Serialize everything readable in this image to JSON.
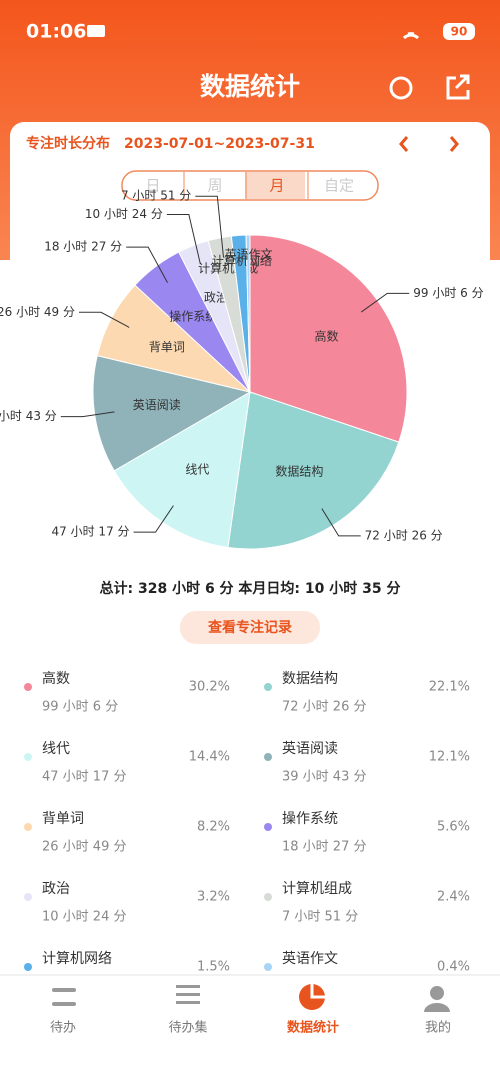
{
  "status_bar": {
    "time": "01:06",
    "battery": "90"
  },
  "header": {
    "title": "数据统计"
  },
  "card": {
    "heading": "专注时长分布",
    "range": "2023-07-01~2023-07-31",
    "tabs": [
      "日",
      "周",
      "月",
      "自定"
    ],
    "summary": "总计: 328 小时 6 分  本月日均: 10 小时 35 分",
    "button": "查看专注记录"
  },
  "chart_data": {
    "type": "pie",
    "categories": [
      "高数",
      "数据结构",
      "线代",
      "英语阅读",
      "背单词",
      "操作系统",
      "政治",
      "计算机组成",
      "计算机网络",
      "英语作文"
    ],
    "values": [
      30.2,
      22.1,
      14.4,
      12.1,
      8.2,
      5.6,
      3.2,
      2.4,
      1.5,
      0.4
    ],
    "value_labels": [
      "30.2%",
      "22.1%",
      "14.4%",
      "12.1%",
      "8.2%",
      "5.6%",
      "3.2%",
      "2.4%",
      "1.5%",
      "0.4%"
    ],
    "durations": [
      "99 小时 6 分",
      "72 小时 26 分",
      "47 小时 17 分",
      "39 小时 43 分",
      "26 小时 49 分",
      "18 小时 27 分",
      "10 小时 24 分",
      "7 小时 51 分",
      null,
      null
    ],
    "colors": [
      "#f4879a",
      "#93d3d0",
      "#cdf5f3",
      "#8fb3b9",
      "#fcd9b0",
      "#9b87f0",
      "#e6e4f7",
      "#d8dcd6",
      "#5ab0e8",
      "#a8d4f5"
    ]
  },
  "nav": [
    "待办",
    "待办集",
    "数据统计",
    "我的"
  ]
}
